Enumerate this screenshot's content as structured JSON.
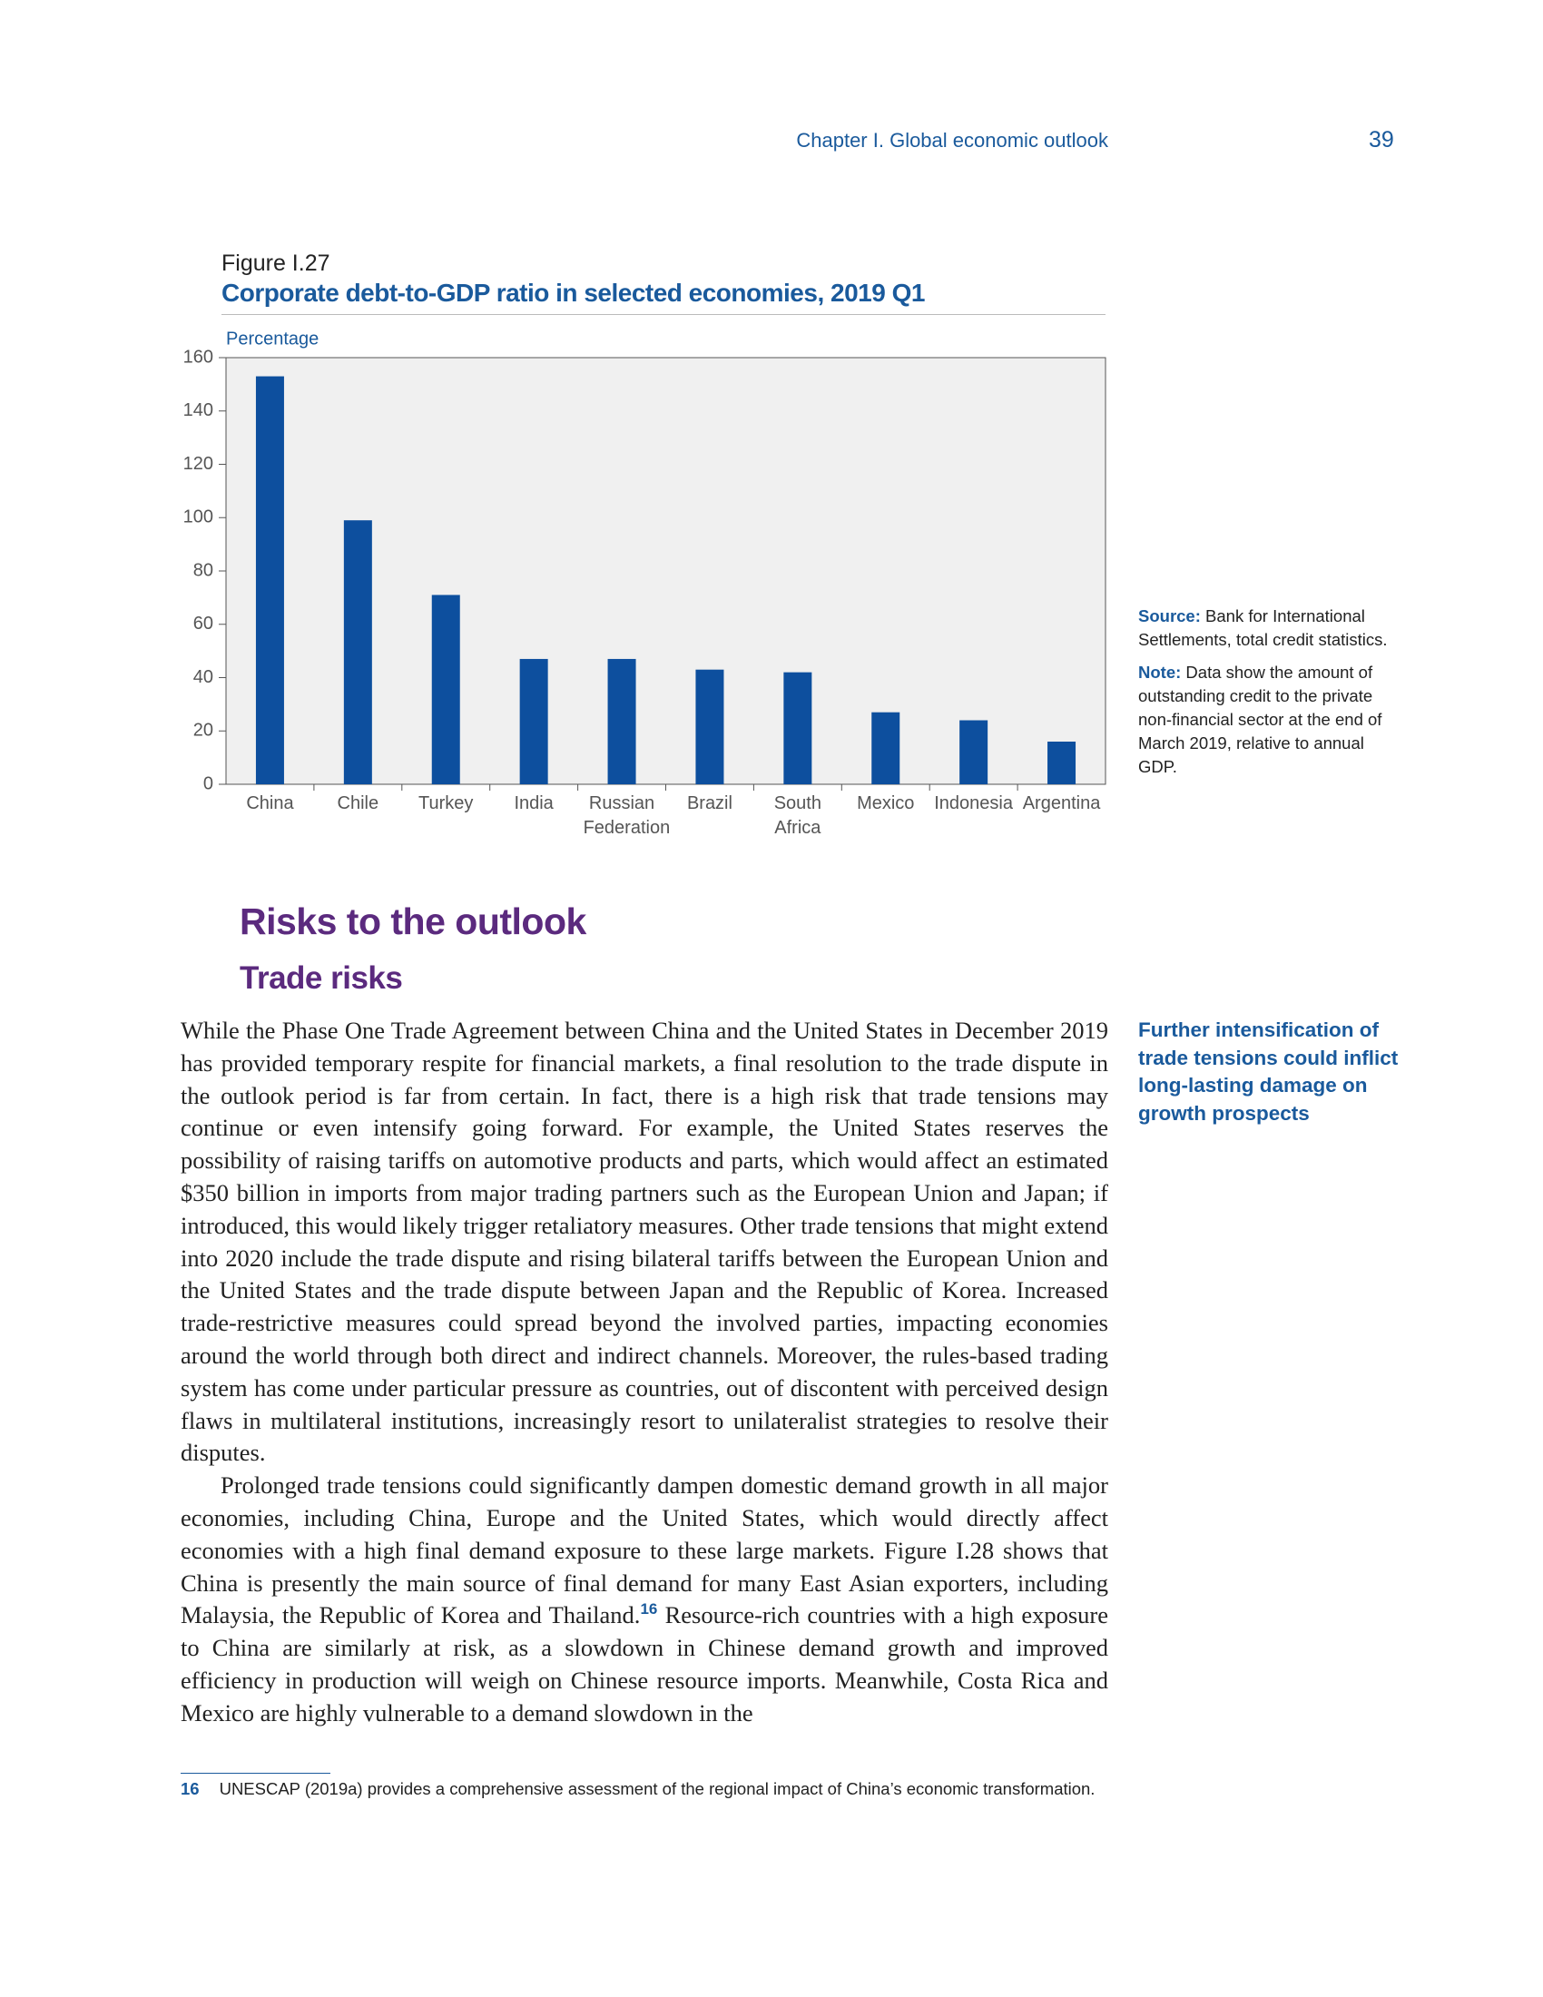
{
  "header": {
    "chapter": "Chapter I.  Global economic outlook",
    "page_number": "39"
  },
  "chart_data": {
    "type": "bar",
    "figure_label": "Figure I.27",
    "title": "Corporate debt-to-GDP ratio in selected economies, 2019 Q1",
    "y_label": "Percentage",
    "categories": [
      "China",
      "Chile",
      "Turkey",
      "India",
      "Russian Federation",
      "Brazil",
      "South Africa",
      "Mexico",
      "Indonesia",
      "Argentina"
    ],
    "values": [
      153,
      99,
      71,
      47,
      47,
      43,
      42,
      27,
      24,
      16
    ],
    "color": "#0d4f9e",
    "ylim": [
      0,
      160
    ],
    "yticks": [
      0,
      20,
      40,
      60,
      80,
      100,
      120,
      140,
      160
    ],
    "grid": false
  },
  "figure_notes": {
    "source": {
      "label": "Source:",
      "text": "Bank for International Settlements, total credit statistics."
    },
    "note": {
      "label": "Note:",
      "text": "Data show the amount of outstanding credit to the private non-financial sector at the end of March 2019, relative to annual GDP."
    }
  },
  "section": {
    "heading": "Risks to the outlook",
    "subheading": "Trade risks"
  },
  "sidenote": "Further intensification of trade tensions could inflict long-lasting damage on growth prospects",
  "body": {
    "paragraph_1": "While the Phase One Trade Agreement between China and the United States in December 2019 has provided temporary respite for financial markets, a final resolution to the trade dispute in the outlook period is far from certain. In fact, there is a high risk that trade tensions may continue or even intensify going forward. For example, the United States reserves the possibility of raising tariffs on automotive products and parts, which would affect an estimated $350 billion in imports from major trading partners such as the European Union and Japan; if introduced, this would likely trigger retaliatory measures. Other trade tensions that might extend into 2020 include the trade dispute and rising bilateral tariffs between the European Union and the United States and the trade dispute between Japan and the Republic of Korea. Increased trade-restrictive measures could spread beyond the involved parties, impacting economies around the world through both direct and indirect channels. Moreover, the rules-based trading system has come under particular pressure as countries, out of discontent with perceived design flaws in multilateral institutions, increasingly resort to unilateralist strategies to resolve their disputes.",
    "paragraph_2": {
      "before": "Prolonged trade tensions could significantly dampen domestic demand growth in all major economies, including China, Europe and the United States, which would directly affect economies with a high final demand exposure to these large markets. Figure I.28 shows that China is presently the main source of final demand for many East Asian exporters, including Malaysia, the Republic of Korea and Thailand.",
      "ref": "16",
      "after": " Resource-rich countries with a high exposure to China are similarly at risk, as a slowdown in Chinese demand growth and improved efficiency in production will weigh on Chinese resource imports. Meanwhile, Costa Rica and Mexico are highly vulnerable to a demand slowdown in the"
    }
  },
  "footnote": {
    "number": "16",
    "text": "UNESCAP (2019a) provides a comprehensive assessment of the regional impact of China’s economic transformation."
  }
}
